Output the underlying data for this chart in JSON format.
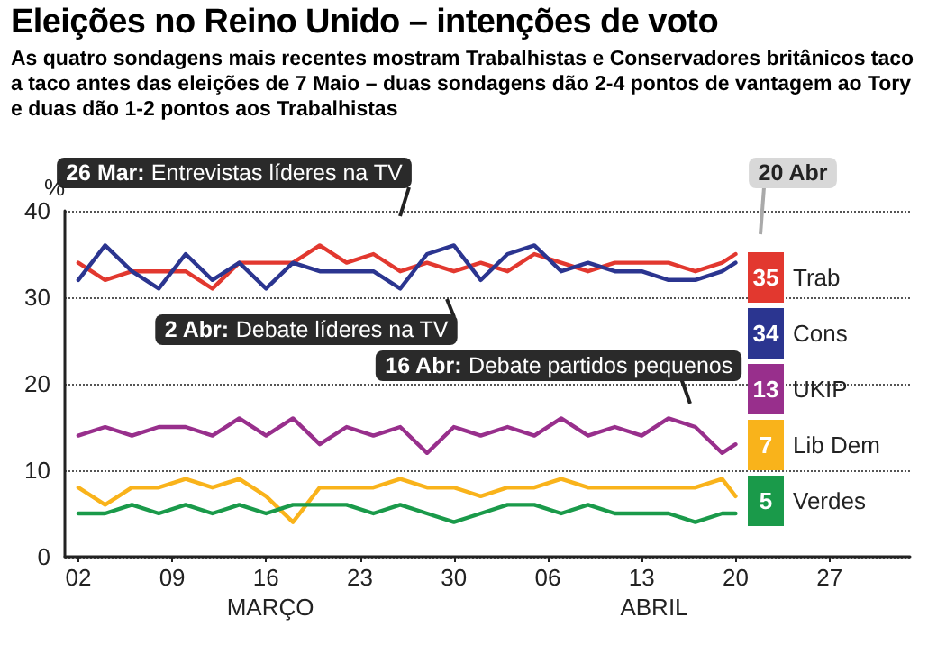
{
  "chart_data": {
    "type": "line",
    "title": "Eleições no Reino Unido – intenções de voto",
    "subtitle": "As quatro sondagens mais recentes mostram Trabalhistas e Conservadores britânicos taco a taco antes das eleições de 7 Maio – duas sondagens dão 2-4 pontos de vantagem ao Tory e duas dão 1-2 pontos aos Trabalhistas",
    "ylabel": "%",
    "x": [
      "--03-02",
      "--03-04",
      "--03-06",
      "--03-08",
      "--03-10",
      "--03-12",
      "--03-14",
      "--03-16",
      "--03-18",
      "--03-20",
      "--03-22",
      "--03-24",
      "--03-26",
      "--03-28",
      "--03-30",
      "--04-01",
      "--04-03",
      "--04-05",
      "--04-07",
      "--04-09",
      "--04-11",
      "--04-13",
      "--04-15",
      "--04-17",
      "--04-19",
      "--04-20"
    ],
    "series": [
      {
        "name": "Trab",
        "color": "#e2382f",
        "values": [
          34,
          32,
          33,
          33,
          33,
          31,
          34,
          34,
          34,
          36,
          34,
          35,
          33,
          34,
          33,
          34,
          33,
          35,
          34,
          33,
          34,
          34,
          34,
          33,
          34,
          35
        ],
        "value_labels": [
          null,
          null,
          null,
          null,
          null,
          null,
          null,
          null,
          null,
          null,
          null,
          null,
          null,
          null,
          null,
          null,
          null,
          null,
          null,
          null,
          null,
          null,
          null,
          null,
          null,
          "35"
        ]
      },
      {
        "name": "Cons",
        "color": "#2b3590",
        "values": [
          32,
          36,
          33,
          31,
          35,
          32,
          34,
          31,
          34,
          33,
          33,
          33,
          31,
          35,
          36,
          32,
          35,
          36,
          33,
          34,
          33,
          33,
          32,
          32,
          33,
          34
        ],
        "value_labels": [
          null,
          null,
          null,
          null,
          null,
          null,
          null,
          null,
          null,
          null,
          null,
          null,
          null,
          null,
          null,
          null,
          null,
          null,
          null,
          null,
          null,
          null,
          null,
          null,
          null,
          "34"
        ]
      },
      {
        "name": "UKIP",
        "color": "#982f8c",
        "values": [
          14,
          15,
          14,
          15,
          15,
          14,
          16,
          14,
          16,
          13,
          15,
          14,
          15,
          12,
          15,
          14,
          15,
          14,
          16,
          14,
          15,
          14,
          16,
          15,
          12,
          13
        ],
        "value_labels": [
          null,
          null,
          null,
          null,
          null,
          null,
          null,
          null,
          null,
          null,
          null,
          null,
          null,
          null,
          null,
          null,
          null,
          null,
          null,
          null,
          null,
          null,
          null,
          null,
          null,
          "13"
        ]
      },
      {
        "name": "Lib Dem",
        "color": "#f9b31b",
        "values": [
          8,
          6,
          8,
          8,
          9,
          8,
          9,
          7,
          4,
          8,
          8,
          8,
          9,
          8,
          8,
          7,
          8,
          8,
          9,
          8,
          8,
          8,
          8,
          8,
          9,
          7
        ],
        "value_labels": [
          null,
          null,
          null,
          null,
          null,
          null,
          null,
          null,
          null,
          null,
          null,
          null,
          null,
          null,
          null,
          null,
          null,
          null,
          null,
          null,
          null,
          null,
          null,
          null,
          null,
          "7"
        ]
      },
      {
        "name": "Verdes",
        "color": "#1a9a4a",
        "values": [
          5,
          5,
          6,
          5,
          6,
          5,
          6,
          5,
          6,
          6,
          6,
          5,
          6,
          5,
          4,
          5,
          6,
          6,
          5,
          6,
          5,
          5,
          5,
          4,
          5,
          5
        ],
        "value_labels": [
          null,
          null,
          null,
          null,
          null,
          null,
          null,
          null,
          null,
          null,
          null,
          null,
          null,
          null,
          null,
          null,
          null,
          null,
          null,
          null,
          null,
          null,
          null,
          null,
          null,
          "5"
        ]
      }
    ],
    "xlim": [
      "--03-01",
      "--05-03"
    ],
    "xticks": [
      {
        "value": "--03-02",
        "label": "02"
      },
      {
        "value": "--03-09",
        "label": "09"
      },
      {
        "value": "--03-16",
        "label": "16"
      },
      {
        "value": "--03-23",
        "label": "23"
      },
      {
        "value": "--03-30",
        "label": "30"
      },
      {
        "value": "--04-06",
        "label": "06"
      },
      {
        "value": "--04-13",
        "label": "13"
      },
      {
        "value": "--04-20",
        "label": "20"
      },
      {
        "value": "--04-27",
        "label": "27"
      }
    ],
    "ylim": [
      0,
      40
    ],
    "yticks": [
      0,
      10,
      20,
      30,
      40
    ],
    "grid": "y",
    "legend": "right",
    "marker": "none",
    "line_style": "solid",
    "annotations": [
      "26 Mar: Entrevistas líderes na TV",
      "2 Abr: Debate líderes na TV",
      "16 Abr: Debate partidos pequenos",
      "20 Abr",
      "MARÇO",
      "ABRIL"
    ]
  }
}
